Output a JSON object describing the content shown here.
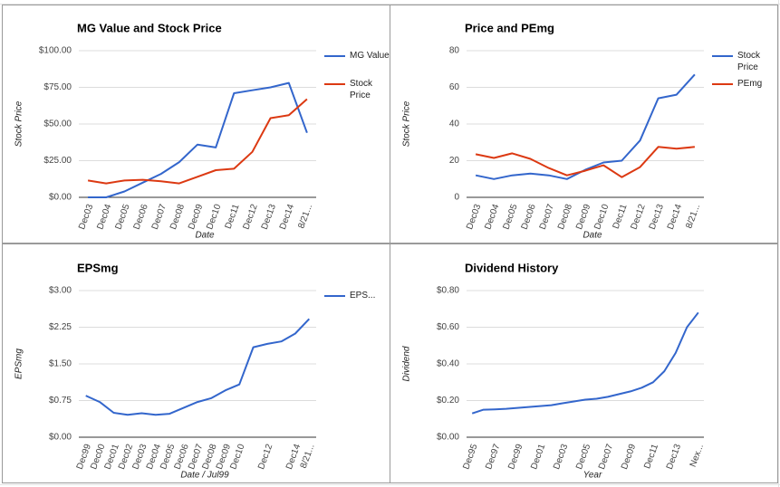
{
  "chart_data": [
    {
      "type": "line",
      "title": "MG Value and Stock Price",
      "ylabel": "Stock Price",
      "xlabel": "Date",
      "grid": true,
      "legend": "right",
      "categories": [
        "Dec03",
        "Dec04",
        "Dec05",
        "Dec06",
        "Dec07",
        "Dec08",
        "Dec09",
        "Dec10",
        "Dec11",
        "Dec12",
        "Dec13",
        "Dec14",
        "8/21..."
      ],
      "series": [
        {
          "name": "MG Value",
          "color": "#3366cc",
          "values": [
            0,
            0,
            4,
            10,
            16,
            24,
            36,
            34,
            71,
            73,
            75,
            78,
            44
          ]
        },
        {
          "name": "Stock Price",
          "color": "#dc3912",
          "values": [
            11.5,
            9.5,
            11.5,
            12,
            11,
            9.5,
            14,
            18.5,
            19.5,
            31,
            54,
            56,
            67
          ]
        }
      ],
      "ylim": [
        0,
        100
      ],
      "yticks": [
        {
          "value": 0,
          "label": "$0.00"
        },
        {
          "value": 25,
          "label": "$25.00"
        },
        {
          "value": 50,
          "label": "$50.00"
        },
        {
          "value": 75,
          "label": "$75.00"
        },
        {
          "value": 100,
          "label": "$100.00"
        }
      ]
    },
    {
      "type": "line",
      "title": "Price and PEmg",
      "ylabel": "Stock Price",
      "xlabel": "Date",
      "grid": true,
      "legend": "right",
      "categories": [
        "Dec03",
        "Dec04",
        "Dec05",
        "Dec06",
        "Dec07",
        "Dec08",
        "Dec09",
        "Dec10",
        "Dec11",
        "Dec12",
        "Dec13",
        "Dec14",
        "8/21..."
      ],
      "series": [
        {
          "name": "Stock Price",
          "color": "#3366cc",
          "values": [
            12,
            10,
            12,
            13,
            12,
            10,
            15,
            19,
            20,
            31,
            54,
            56,
            67
          ]
        },
        {
          "name": "PEmg",
          "color": "#dc3912",
          "values": [
            23.5,
            21.5,
            24,
            21,
            16,
            12,
            14.5,
            17.5,
            11,
            16.5,
            27.5,
            26.5,
            27.5
          ]
        }
      ],
      "ylim": [
        0,
        80
      ],
      "yticks": [
        0,
        20,
        40,
        60,
        80
      ]
    },
    {
      "type": "line",
      "title": "EPSmg",
      "ylabel": "EPSmg",
      "xlabel": "Date / Jul99",
      "grid": true,
      "legend": "right",
      "categories": [
        "Dec99",
        "Dec00",
        "Dec01",
        "Dec02",
        "Dec03",
        "Dec04",
        "Dec05",
        "Dec06",
        "Dec07",
        "Dec08",
        "Dec09",
        "Dec10",
        null,
        "Dec12",
        null,
        "Dec14",
        "8/21..."
      ],
      "series": [
        {
          "name": "EPS...",
          "color": "#3366cc",
          "values": [
            0.85,
            0.72,
            0.5,
            0.46,
            0.49,
            0.46,
            0.48,
            0.6,
            0.72,
            0.8,
            0.96,
            1.08,
            1.84,
            1.91,
            1.96,
            2.12,
            2.42
          ]
        }
      ],
      "ylim": [
        0,
        3
      ],
      "yticks": [
        {
          "value": 0,
          "label": "$0.00"
        },
        {
          "value": 0.75,
          "label": "$0.75"
        },
        {
          "value": 1.5,
          "label": "$1.50"
        },
        {
          "value": 2.25,
          "label": "$2.25"
        },
        {
          "value": 3,
          "label": "$3.00"
        }
      ]
    },
    {
      "type": "line",
      "title": "Dividend History",
      "ylabel": "Dividend",
      "xlabel": "Year",
      "grid": true,
      "categories": [
        "Dec95",
        null,
        "Dec97",
        null,
        "Dec99",
        null,
        "Dec01",
        null,
        "Dec03",
        null,
        "Dec05",
        null,
        "Dec07",
        null,
        "Dec09",
        null,
        "Dec11",
        null,
        "Dec13",
        null,
        "Nex..."
      ],
      "series": [
        {
          "color": "#3366cc",
          "values": [
            0.13,
            0.15,
            0.152,
            0.155,
            0.16,
            0.165,
            0.17,
            0.175,
            0.185,
            0.195,
            0.205,
            0.21,
            0.22,
            0.235,
            0.25,
            0.27,
            0.3,
            0.36,
            0.46,
            0.6,
            0.68
          ]
        }
      ],
      "ylim": [
        0,
        0.8
      ],
      "yticks": [
        {
          "value": 0,
          "label": "$0.00"
        },
        {
          "value": 0.2,
          "label": "$0.20"
        },
        {
          "value": 0.4,
          "label": "$0.40"
        },
        {
          "value": 0.6,
          "label": "$0.60"
        },
        {
          "value": 0.8,
          "label": "$0.80"
        }
      ]
    }
  ]
}
